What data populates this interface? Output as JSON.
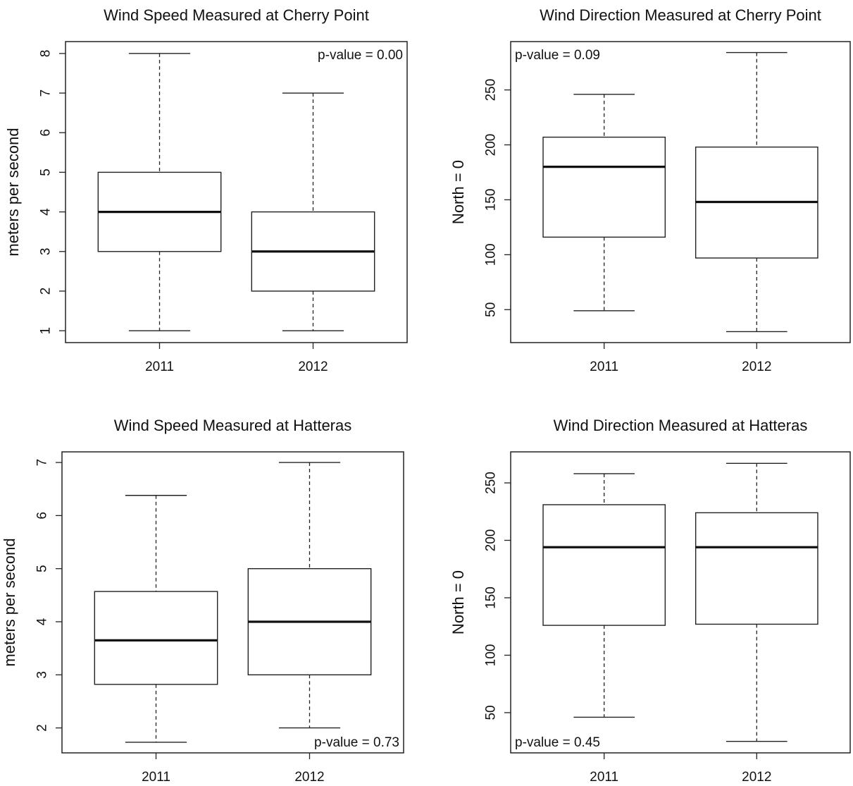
{
  "chart_data": [
    {
      "type": "boxplot",
      "title": "Wind Speed Measured at Cherry Point",
      "xlabel": "",
      "ylabel": "meters per second",
      "categories": [
        "2011",
        "2012"
      ],
      "boxes": [
        {
          "min": 1,
          "q1": 3,
          "median": 4,
          "q3": 5,
          "max": 8
        },
        {
          "min": 1,
          "q1": 2,
          "median": 3,
          "q3": 4,
          "max": 7
        }
      ],
      "ylim": [
        0.7,
        8.3
      ],
      "yticks": [
        1,
        2,
        3,
        4,
        5,
        6,
        7,
        8
      ],
      "annotation": "p-value = 0.00",
      "annotation_position": "top-right",
      "grid": false
    },
    {
      "type": "boxplot",
      "title": "Wind Direction Measured at Cherry Point",
      "xlabel": "",
      "ylabel": "North = 0",
      "categories": [
        "2011",
        "2012"
      ],
      "boxes": [
        {
          "min": 49,
          "q1": 116,
          "median": 180,
          "q3": 207,
          "max": 246
        },
        {
          "min": 30,
          "q1": 97,
          "median": 148,
          "q3": 198,
          "max": 284
        }
      ],
      "ylim": [
        20,
        294
      ],
      "yticks": [
        50,
        100,
        150,
        200,
        250
      ],
      "annotation": "p-value = 0.09",
      "annotation_position": "top-left",
      "grid": false
    },
    {
      "type": "boxplot",
      "title": "Wind Speed Measured at Hatteras",
      "xlabel": "",
      "ylabel": "meters per second",
      "categories": [
        "2011",
        "2012"
      ],
      "boxes": [
        {
          "min": 1.73,
          "q1": 2.82,
          "median": 3.65,
          "q3": 4.57,
          "max": 6.38
        },
        {
          "min": 2,
          "q1": 3,
          "median": 4,
          "q3": 5,
          "max": 7
        }
      ],
      "ylim": [
        1.53,
        7.2
      ],
      "yticks": [
        2,
        3,
        4,
        5,
        6,
        7
      ],
      "annotation": "p-value = 0.73",
      "annotation_position": "bottom-right",
      "grid": false
    },
    {
      "type": "boxplot",
      "title": "Wind Direction Measured at Hatteras",
      "xlabel": "",
      "ylabel": "North = 0",
      "categories": [
        "2011",
        "2012"
      ],
      "boxes": [
        {
          "min": 46,
          "q1": 126,
          "median": 194,
          "q3": 231,
          "max": 258
        },
        {
          "min": 25,
          "q1": 127,
          "median": 194,
          "q3": 224,
          "max": 267
        }
      ],
      "ylim": [
        15,
        277
      ],
      "yticks": [
        50,
        100,
        150,
        200,
        250
      ],
      "annotation": "p-value = 0.45",
      "annotation_position": "bottom-left",
      "grid": false
    }
  ]
}
